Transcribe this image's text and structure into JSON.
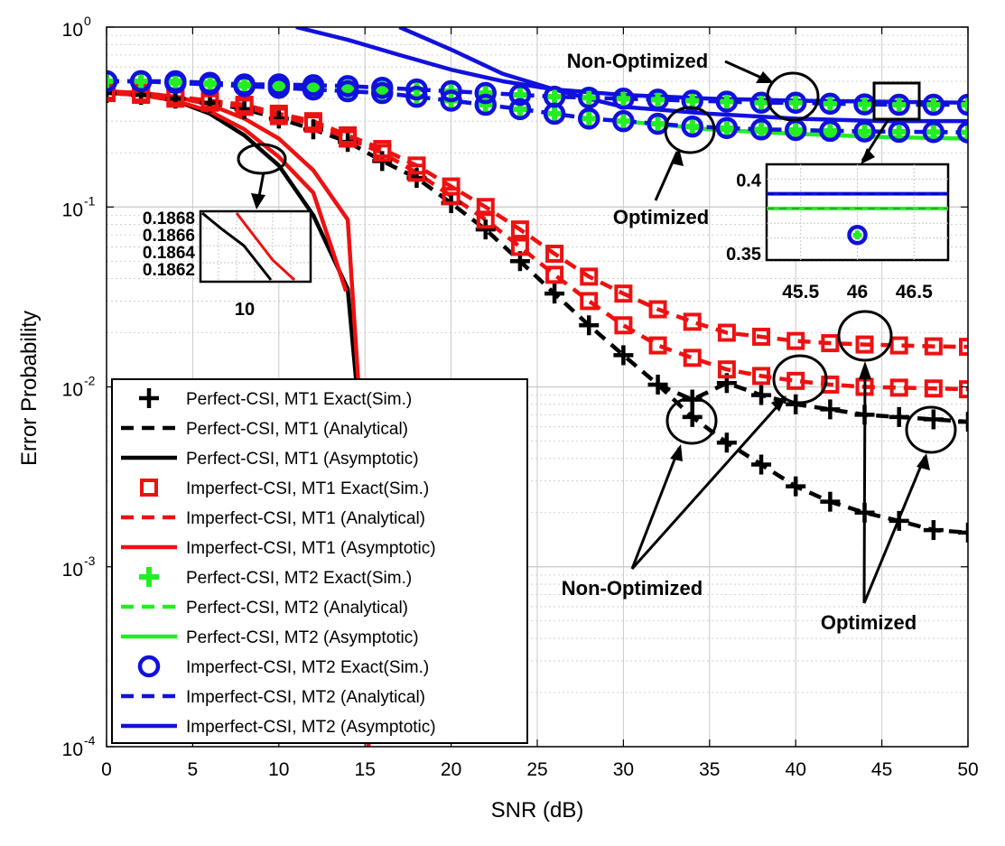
{
  "colors": {
    "black": "#000000",
    "red": "#ee1111",
    "green": "#22ee22",
    "blue": "#1111dd",
    "grid": "#c8c8c8"
  },
  "chart_data": {
    "type": "line",
    "xlabel": "SNR (dB)",
    "ylabel": "Error Probability",
    "xlim": [
      0,
      50
    ],
    "ylim_log10": [
      -4,
      0
    ],
    "xticks": [
      "0",
      "5",
      "10",
      "15",
      "20",
      "25",
      "30",
      "35",
      "40",
      "45",
      "50"
    ],
    "yticks": [
      {
        "exp": 0,
        "base": "10",
        "sup": "0"
      },
      {
        "exp": -1,
        "base": "10",
        "sup": "-1"
      },
      {
        "exp": -2,
        "base": "10",
        "sup": "-2"
      },
      {
        "exp": -3,
        "base": "10",
        "sup": "-3"
      },
      {
        "exp": -4,
        "base": "10",
        "sup": "-4"
      }
    ],
    "grid": true,
    "series": [
      {
        "name": "Perfect-CSI, MT1 Exact(Sim.) Optimized",
        "color": "black",
        "marker": "plus",
        "line": "none",
        "x": [
          0,
          2,
          4,
          6,
          8,
          10,
          12,
          14,
          16,
          18,
          20,
          22,
          24,
          26,
          28,
          30,
          32,
          34,
          36,
          38,
          40,
          42,
          44,
          46,
          48,
          50
        ],
        "y": [
          0.43,
          0.42,
          0.4,
          0.38,
          0.35,
          0.31,
          0.27,
          0.23,
          0.18,
          0.145,
          0.105,
          0.075,
          0.05,
          0.033,
          0.022,
          0.015,
          0.0103,
          0.0085,
          0.0105,
          0.009,
          0.008,
          0.0075,
          0.007,
          0.0068,
          0.0066,
          0.0064
        ]
      },
      {
        "name": "Perfect-CSI, MT1 (Analytical) Optimized",
        "color": "black",
        "dash": "14 9",
        "x": [
          0,
          2,
          4,
          6,
          8,
          10,
          12,
          14,
          16,
          18,
          20,
          22,
          24,
          26,
          28,
          30,
          32,
          34,
          36,
          38,
          40,
          42,
          44,
          46,
          48,
          50
        ],
        "y": [
          0.43,
          0.42,
          0.4,
          0.38,
          0.35,
          0.31,
          0.27,
          0.23,
          0.18,
          0.145,
          0.105,
          0.075,
          0.05,
          0.033,
          0.022,
          0.015,
          0.0103,
          0.0085,
          0.0105,
          0.009,
          0.008,
          0.0075,
          0.007,
          0.0068,
          0.0066,
          0.0064
        ]
      },
      {
        "name": "Perfect-CSI, MT1 Exact(Sim.) Non-Optimized",
        "color": "black",
        "marker": "plus",
        "line": "none",
        "x": [
          34,
          36,
          38,
          40,
          42,
          44,
          46,
          48,
          50
        ],
        "y": [
          0.0068,
          0.0049,
          0.0037,
          0.0028,
          0.0023,
          0.002,
          0.0018,
          0.0016,
          0.00155
        ]
      },
      {
        "name": "Perfect-CSI, MT1 (Analytical) Non-Optimized",
        "color": "black",
        "dash": "14 9",
        "x": [
          32,
          34,
          36,
          38,
          40,
          42,
          44,
          46,
          48,
          50
        ],
        "y": [
          0.0103,
          0.0068,
          0.0049,
          0.0037,
          0.0028,
          0.0023,
          0.002,
          0.0018,
          0.0016,
          0.00155
        ]
      },
      {
        "name": "Perfect-CSI, MT1 (Asymptotic)",
        "color": "black",
        "dash": "",
        "x": [
          0,
          2,
          4,
          6,
          8,
          10,
          12,
          14,
          14.9,
          15.2
        ],
        "y": [
          0.43,
          0.42,
          0.39,
          0.33,
          0.25,
          0.17,
          0.09,
          0.035,
          0.004,
          0.0001
        ]
      },
      {
        "name": "Imperfect-CSI, MT1 Exact(Sim.) A",
        "color": "red",
        "marker": "square",
        "line": "none",
        "x": [
          0,
          2,
          4,
          6,
          8,
          10,
          12,
          14,
          16,
          18,
          20,
          22,
          24,
          26,
          28,
          30,
          32,
          34,
          36,
          38,
          40,
          42,
          44,
          46,
          48,
          50
        ],
        "y": [
          0.44,
          0.43,
          0.41,
          0.39,
          0.37,
          0.33,
          0.3,
          0.25,
          0.21,
          0.17,
          0.13,
          0.1,
          0.075,
          0.055,
          0.041,
          0.033,
          0.027,
          0.023,
          0.02,
          0.019,
          0.018,
          0.0175,
          0.0172,
          0.017,
          0.0168,
          0.0167
        ]
      },
      {
        "name": "Imperfect-CSI, MT1 (Analytical) A",
        "color": "red",
        "dash": "14 9",
        "x": [
          0,
          2,
          4,
          6,
          8,
          10,
          12,
          14,
          16,
          18,
          20,
          22,
          24,
          26,
          28,
          30,
          32,
          34,
          36,
          38,
          40,
          42,
          44,
          46,
          48,
          50
        ],
        "y": [
          0.44,
          0.43,
          0.41,
          0.39,
          0.37,
          0.33,
          0.3,
          0.25,
          0.21,
          0.17,
          0.13,
          0.1,
          0.075,
          0.055,
          0.041,
          0.033,
          0.027,
          0.023,
          0.02,
          0.019,
          0.018,
          0.0175,
          0.0172,
          0.017,
          0.0168,
          0.0167
        ]
      },
      {
        "name": "Imperfect-CSI, MT1 Exact(Sim.) B",
        "color": "red",
        "marker": "square",
        "line": "none",
        "x": [
          0,
          2,
          4,
          6,
          8,
          10,
          12,
          14,
          16,
          18,
          20,
          22,
          24,
          26,
          28,
          30,
          32,
          34,
          36,
          38,
          40,
          42,
          44,
          46,
          48,
          50
        ],
        "y": [
          0.43,
          0.42,
          0.4,
          0.38,
          0.36,
          0.32,
          0.29,
          0.24,
          0.2,
          0.155,
          0.115,
          0.085,
          0.06,
          0.042,
          0.03,
          0.022,
          0.017,
          0.0145,
          0.0125,
          0.0115,
          0.0108,
          0.0103,
          0.01,
          0.0099,
          0.0098,
          0.0097
        ]
      },
      {
        "name": "Imperfect-CSI, MT1 (Analytical) B",
        "color": "red",
        "dash": "14 9",
        "x": [
          0,
          2,
          4,
          6,
          8,
          10,
          12,
          14,
          16,
          18,
          20,
          22,
          24,
          26,
          28,
          30,
          32,
          34,
          36,
          38,
          40,
          42,
          44,
          46,
          48,
          50
        ],
        "y": [
          0.43,
          0.42,
          0.4,
          0.38,
          0.36,
          0.32,
          0.29,
          0.24,
          0.2,
          0.155,
          0.115,
          0.085,
          0.06,
          0.042,
          0.03,
          0.022,
          0.017,
          0.0145,
          0.0125,
          0.0115,
          0.0108,
          0.0103,
          0.01,
          0.0099,
          0.0098,
          0.0097
        ]
      },
      {
        "name": "Imperfect-CSI, MT1 (Asymptotic) A",
        "color": "red",
        "dash": "",
        "x": [
          0,
          2,
          4,
          6,
          8,
          10,
          12,
          13.9
        ],
        "y": [
          0.43,
          0.42,
          0.39,
          0.34,
          0.27,
          0.19,
          0.12,
          0.034
        ]
      },
      {
        "name": "Imperfect-CSI, MT1 (Asymptotic) B",
        "color": "red",
        "dash": "",
        "x": [
          0,
          2,
          4,
          6,
          8,
          10,
          12,
          14,
          14.9,
          15.2
        ],
        "y": [
          0.44,
          0.43,
          0.41,
          0.37,
          0.31,
          0.24,
          0.16,
          0.085,
          0.004,
          0.0001
        ]
      },
      {
        "name": "Perfect-CSI, MT2 Exact(Sim.) A",
        "color": "green",
        "marker": "plusBold",
        "line": "none",
        "x": [
          0,
          2,
          4,
          6,
          8,
          10,
          12,
          14,
          16,
          18,
          20,
          22,
          24,
          26,
          28,
          30,
          32,
          34,
          36,
          38,
          40,
          42,
          44,
          46,
          48,
          50
        ],
        "y": [
          0.5,
          0.5,
          0.5,
          0.49,
          0.48,
          0.48,
          0.475,
          0.47,
          0.46,
          0.45,
          0.44,
          0.43,
          0.42,
          0.41,
          0.405,
          0.4,
          0.395,
          0.39,
          0.385,
          0.38,
          0.38,
          0.375,
          0.372,
          0.37,
          0.37,
          0.37
        ]
      },
      {
        "name": "Perfect-CSI, MT2 Exact(Sim.) B",
        "color": "green",
        "marker": "plusBold",
        "line": "none",
        "x": [
          0,
          2,
          4,
          6,
          8,
          10,
          12,
          14,
          16,
          18,
          20,
          22,
          24,
          26,
          28,
          30,
          32,
          34,
          36,
          38,
          40,
          42,
          44,
          46,
          48,
          50
        ],
        "y": [
          0.5,
          0.5,
          0.49,
          0.48,
          0.47,
          0.46,
          0.45,
          0.44,
          0.43,
          0.41,
          0.39,
          0.37,
          0.35,
          0.33,
          0.31,
          0.3,
          0.29,
          0.28,
          0.275,
          0.27,
          0.268,
          0.265,
          0.263,
          0.262,
          0.261,
          0.26
        ]
      },
      {
        "name": "Perfect-CSI, MT2 (Analytical)",
        "color": "green",
        "dash": "14 9",
        "x": [
          0,
          2,
          4,
          6,
          8,
          10,
          12,
          14,
          16,
          18,
          20,
          22,
          24,
          26,
          28,
          30,
          32,
          34,
          36,
          38,
          40,
          42,
          44,
          46,
          48,
          50
        ],
        "y": [
          0.5,
          0.5,
          0.49,
          0.48,
          0.47,
          0.46,
          0.45,
          0.44,
          0.43,
          0.41,
          0.39,
          0.37,
          0.35,
          0.33,
          0.31,
          0.3,
          0.29,
          0.28,
          0.275,
          0.27,
          0.268,
          0.265,
          0.263,
          0.262,
          0.261,
          0.26
        ]
      },
      {
        "name": "Perfect-CSI, MT2 (Asymptotic)",
        "color": "green",
        "dash": "",
        "x": [
          30,
          35,
          40,
          45,
          50
        ],
        "y": [
          0.3,
          0.27,
          0.255,
          0.245,
          0.24
        ]
      },
      {
        "name": "Imperfect-CSI, MT2 Exact(Sim.) A",
        "color": "blue",
        "marker": "circle",
        "line": "none",
        "x": [
          0,
          2,
          4,
          6,
          8,
          10,
          12,
          14,
          16,
          18,
          20,
          22,
          24,
          26,
          28,
          30,
          32,
          34,
          36,
          38,
          40,
          42,
          44,
          46,
          48,
          50
        ],
        "y": [
          0.5,
          0.5,
          0.5,
          0.49,
          0.48,
          0.48,
          0.475,
          0.47,
          0.46,
          0.45,
          0.44,
          0.43,
          0.42,
          0.41,
          0.405,
          0.4,
          0.395,
          0.39,
          0.385,
          0.38,
          0.38,
          0.375,
          0.372,
          0.37,
          0.37,
          0.37
        ]
      },
      {
        "name": "Imperfect-CSI, MT2 (Analytical) A",
        "color": "blue",
        "dash": "14 9",
        "x": [
          0,
          2,
          4,
          6,
          8,
          10,
          12,
          14,
          16,
          18,
          20,
          22,
          24,
          26,
          28,
          30,
          32,
          34,
          36,
          38,
          40,
          42,
          44,
          46,
          48,
          50
        ],
        "y": [
          0.5,
          0.5,
          0.5,
          0.49,
          0.48,
          0.48,
          0.475,
          0.47,
          0.46,
          0.45,
          0.44,
          0.43,
          0.42,
          0.41,
          0.405,
          0.4,
          0.395,
          0.39,
          0.385,
          0.38,
          0.38,
          0.375,
          0.372,
          0.37,
          0.37,
          0.37
        ]
      },
      {
        "name": "Imperfect-CSI, MT2 Exact(Sim.) B",
        "color": "blue",
        "marker": "circle",
        "line": "none",
        "x": [
          0,
          2,
          4,
          6,
          8,
          10,
          12,
          14,
          16,
          18,
          20,
          22,
          24,
          26,
          28,
          30,
          32,
          34,
          36,
          38,
          40,
          42,
          44,
          46,
          48,
          50
        ],
        "y": [
          0.5,
          0.5,
          0.49,
          0.48,
          0.47,
          0.46,
          0.45,
          0.44,
          0.43,
          0.41,
          0.39,
          0.37,
          0.35,
          0.33,
          0.31,
          0.3,
          0.29,
          0.28,
          0.275,
          0.27,
          0.268,
          0.265,
          0.263,
          0.262,
          0.261,
          0.26
        ]
      },
      {
        "name": "Imperfect-CSI, MT2 (Analytical) B",
        "color": "blue",
        "dash": "14 9",
        "x": [
          0,
          2,
          4,
          6,
          8,
          10,
          12,
          14,
          16,
          18,
          20,
          22,
          24,
          26,
          28,
          30,
          32,
          34,
          36,
          38,
          40,
          42,
          44,
          46,
          48,
          50
        ],
        "y": [
          0.5,
          0.5,
          0.49,
          0.48,
          0.47,
          0.46,
          0.45,
          0.44,
          0.43,
          0.41,
          0.39,
          0.37,
          0.35,
          0.33,
          0.31,
          0.3,
          0.29,
          0.28,
          0.275,
          0.27,
          0.268,
          0.265,
          0.263,
          0.262,
          0.261,
          0.26
        ]
      },
      {
        "name": "Imperfect-CSI, MT2 (Asymptotic) A",
        "color": "blue",
        "dash": "",
        "x": [
          11,
          14,
          17,
          20,
          23,
          26,
          30,
          35,
          40,
          45,
          50
        ],
        "y": [
          1.0,
          0.85,
          0.7,
          0.58,
          0.5,
          0.45,
          0.42,
          0.4,
          0.39,
          0.385,
          0.38
        ]
      },
      {
        "name": "Imperfect-CSI, MT2 (Asymptotic) B",
        "color": "blue",
        "dash": "",
        "x": [
          17,
          20,
          23,
          26,
          28,
          30,
          35,
          40,
          45,
          50
        ],
        "y": [
          1.0,
          0.75,
          0.55,
          0.45,
          0.4,
          0.36,
          0.33,
          0.31,
          0.3,
          0.3
        ]
      }
    ],
    "legend": {
      "placement": "bottom-left",
      "entries": [
        {
          "label": "Perfect-CSI, MT1 Exact(Sim.)",
          "color": "black",
          "kind": "plus"
        },
        {
          "label": "Perfect-CSI, MT1 (Analytical)",
          "color": "black",
          "kind": "dash"
        },
        {
          "label": "Perfect-CSI, MT1 (Asymptotic)",
          "color": "black",
          "kind": "solid"
        },
        {
          "label": "Imperfect-CSI, MT1 Exact(Sim.)",
          "color": "red",
          "kind": "square"
        },
        {
          "label": "Imperfect-CSI, MT1 (Analytical)",
          "color": "red",
          "kind": "dash"
        },
        {
          "label": "Imperfect-CSI, MT1 (Asymptotic)",
          "color": "red",
          "kind": "solid"
        },
        {
          "label": "Perfect-CSI, MT2 Exact(Sim.)",
          "color": "green",
          "kind": "plusBold"
        },
        {
          "label": "Perfect-CSI, MT2 (Analytical)",
          "color": "green",
          "kind": "dash"
        },
        {
          "label": "Perfect-CSI, MT2 (Asymptotic)",
          "color": "green",
          "kind": "solid"
        },
        {
          "label": "Imperfect-CSI, MT2 Exact(Sim.)",
          "color": "blue",
          "kind": "circle"
        },
        {
          "label": "Imperfect-CSI, MT2 (Analytical)",
          "color": "blue",
          "kind": "dash"
        },
        {
          "label": "Imperfect-CSI, MT2 (Asymptotic)",
          "color": "blue",
          "kind": "solid"
        }
      ]
    },
    "annotations": {
      "non_optimized_top": "Non-Optimized",
      "optimized_mid": "Optimized",
      "non_optimized_bottom": "Non-Optimized",
      "optimized_bottom": "Optimized"
    },
    "inset_left": {
      "yticks": [
        "0.1868",
        "0.1866",
        "0.1864",
        "0.1862"
      ],
      "xtick": "10"
    },
    "inset_right": {
      "xlim": [
        45.2,
        46.8
      ],
      "ylim": [
        0.345,
        0.41
      ],
      "yticks": [
        "0.4",
        "0.35"
      ],
      "xticks": [
        "45.5",
        "46",
        "46.5"
      ],
      "lines": [
        {
          "color": "blue",
          "y": 0.39
        },
        {
          "color": "green",
          "y": 0.38
        }
      ],
      "point": {
        "x": 46,
        "y": 0.362
      }
    }
  }
}
